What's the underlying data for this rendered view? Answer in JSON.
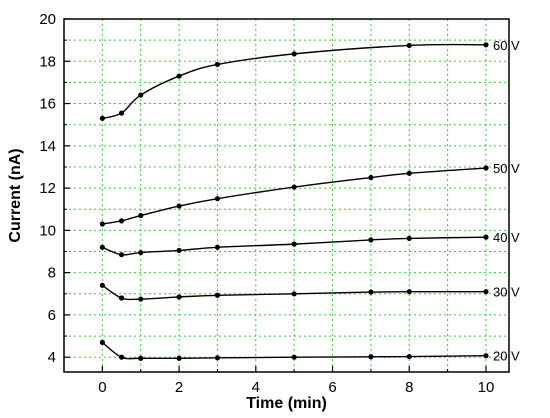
{
  "chart_data": {
    "type": "line",
    "title": "",
    "xlabel": "Time (min)",
    "ylabel": "Current (nA)",
    "xlim": [
      -1,
      10.6
    ],
    "ylim": [
      3.3,
      20
    ],
    "xticks": [
      0,
      2,
      4,
      6,
      8,
      10
    ],
    "yticks": [
      4,
      6,
      8,
      10,
      12,
      14,
      16,
      18,
      20
    ],
    "grid": true,
    "colors": {
      "line": "#000000",
      "grid": "#33cc33",
      "axis": "#000000"
    },
    "series": [
      {
        "name": "20 V",
        "x": [
          0,
          0.5,
          1,
          2,
          3,
          5,
          7,
          8,
          10
        ],
        "y": [
          4.7,
          4.0,
          3.95,
          3.95,
          3.97,
          4.0,
          4.02,
          4.03,
          4.07
        ]
      },
      {
        "name": "30 V",
        "x": [
          0,
          0.5,
          1,
          2,
          3,
          5,
          7,
          8,
          10
        ],
        "y": [
          7.4,
          6.8,
          6.75,
          6.85,
          6.93,
          7.0,
          7.08,
          7.1,
          7.1
        ]
      },
      {
        "name": "40 V",
        "x": [
          0,
          0.5,
          1,
          2,
          3,
          5,
          7,
          8,
          10
        ],
        "y": [
          9.2,
          8.85,
          8.95,
          9.05,
          9.2,
          9.35,
          9.55,
          9.62,
          9.68
        ]
      },
      {
        "name": "50 V",
        "x": [
          0,
          0.5,
          1,
          2,
          3,
          5,
          7,
          8,
          10
        ],
        "y": [
          10.3,
          10.45,
          10.7,
          11.15,
          11.5,
          12.05,
          12.5,
          12.7,
          12.95
        ]
      },
      {
        "name": "60 V",
        "x": [
          0,
          0.5,
          1,
          2,
          3,
          5,
          8,
          10
        ],
        "y": [
          15.3,
          15.55,
          16.4,
          17.3,
          17.85,
          18.35,
          18.75,
          18.78
        ]
      }
    ]
  }
}
